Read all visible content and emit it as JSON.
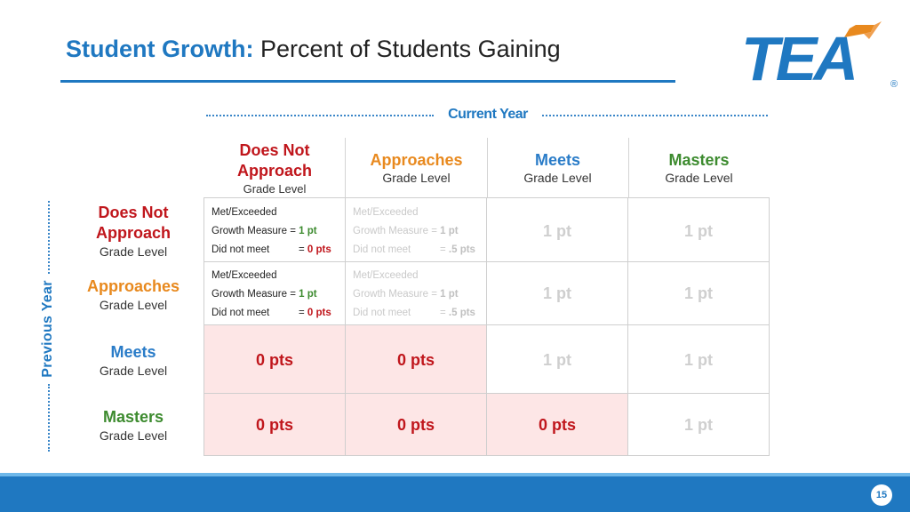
{
  "title": {
    "highlight": "Student Growth:",
    "rest": "Percent of Students Gaining"
  },
  "logo": {
    "text": "TEA",
    "mark": "®"
  },
  "axes": {
    "current_year": "Current Year",
    "previous_year": "Previous Year"
  },
  "grade_level": "Grade Level",
  "columns": [
    {
      "line1": "Does Not",
      "line2": "Approach"
    },
    {
      "line1": "Approaches"
    },
    {
      "line1": "Meets"
    },
    {
      "line1": "Masters"
    }
  ],
  "rows": [
    {
      "line1": "Does Not",
      "line2": "Approach"
    },
    {
      "line1": "Approaches"
    },
    {
      "line1": "Meets"
    },
    {
      "line1": "Masters"
    }
  ],
  "criteria": {
    "met": "Met/Exceeded",
    "growth": "Growth Measure =",
    "not_met": "Did not meet",
    "eq": "=",
    "one_pt": "1 pt",
    "zero_pts": "0 pts",
    "half_pts": ".5 pts"
  },
  "values": {
    "one_pt": "1 pt",
    "zero_pts": "0 pts"
  },
  "page_number": "15",
  "colors": {
    "accent": "#1f78c1",
    "red": "#c0161c",
    "orange": "#e8891e",
    "green": "#3d8b2f",
    "pink": "#fde6e6"
  }
}
